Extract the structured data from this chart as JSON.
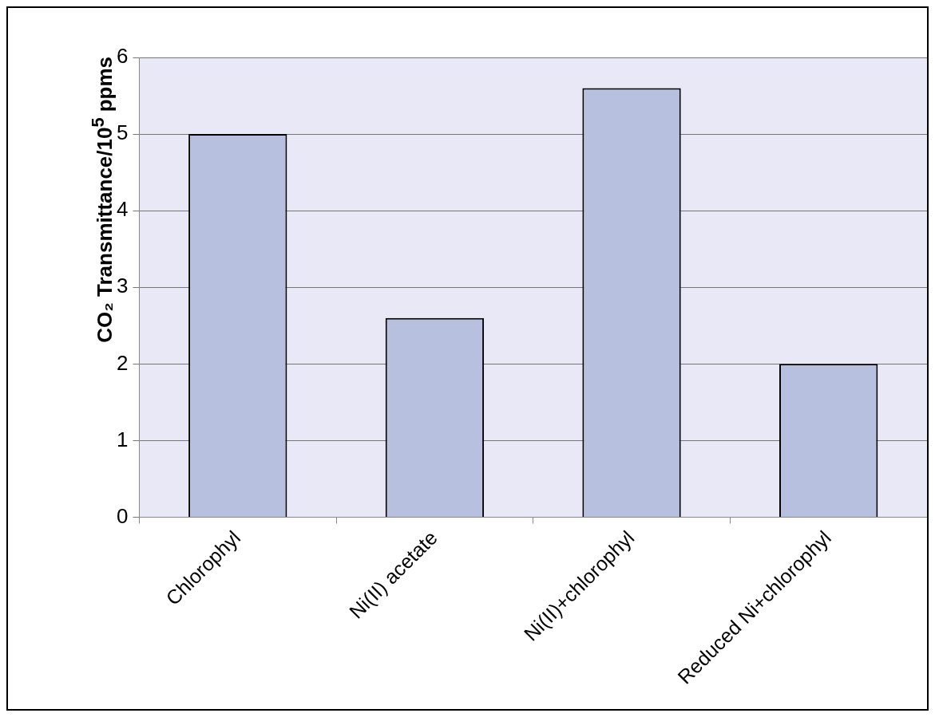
{
  "chart_data": {
    "type": "bar",
    "ylabel": "CO₂ Transmittance/10$^{5}$ ppms",
    "categories": [
      "Chlorophyl",
      "Ni(II) acetate",
      "Ni(II)+chlorophyl",
      "Reduced Ni+chlorophyl"
    ],
    "values": [
      5.0,
      2.6,
      5.6,
      2.0
    ],
    "color": "#b7c0de",
    "ylim": [
      0,
      6
    ],
    "yticks": [
      0,
      1,
      2,
      3,
      4,
      5,
      6
    ],
    "grid": "y",
    "legend": false
  }
}
